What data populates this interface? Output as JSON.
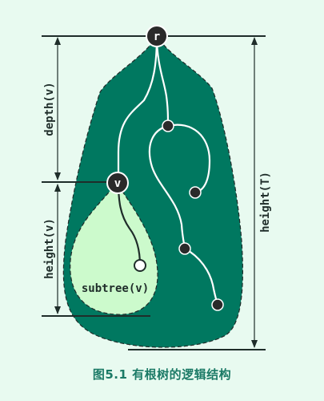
{
  "labels": {
    "depth": "depth(v)",
    "height_v": "height(v)",
    "height_T": "height(T)",
    "subtree": "subtree(v)"
  },
  "nodes": {
    "root": "r",
    "v": "v"
  },
  "caption": "图5.1  有根树的逻辑结构",
  "colors": {
    "background": "#e8faf0",
    "tree_fill": "#007860",
    "subtree_fill": "#ccfacc",
    "edge": "#ffffff",
    "node_fill": "#2a2a2a",
    "caption": "#1b7a66"
  }
}
